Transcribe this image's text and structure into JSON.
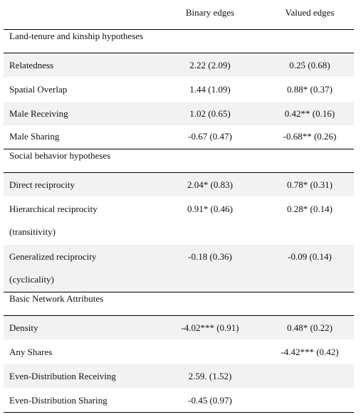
{
  "columns": {
    "binary": "Binary edges",
    "valued": "Valued edges"
  },
  "sections": [
    {
      "title": "Land-tenure and kinship hypotheses",
      "rows": [
        {
          "label": "Relatedness",
          "binary": "2.22 (2.09)",
          "valued": "0.25 (0.68)"
        },
        {
          "label": "Spatial Overlap",
          "binary": "1.44 (1.09)",
          "valued": "0.88* (0.37)"
        },
        {
          "label": "Male Receiving",
          "binary": "1.02 (0.65)",
          "valued": "0.42** (0.16)"
        },
        {
          "label": "Male Sharing",
          "binary": "-0.67 (0.47)",
          "valued": "-0.68** (0.26)"
        }
      ]
    },
    {
      "title": "Social behavior hypotheses",
      "rows": [
        {
          "label": "Direct reciprocity",
          "binary": "2.04* (0.83)",
          "valued": "0.78* (0.31)"
        },
        {
          "label_line1": "Hierarchical reciprocity",
          "label_line2": "(transitivity)",
          "binary": "0.91* (0.46)",
          "valued": "0.28* (0.14)"
        },
        {
          "label_line1": "Generalized reciprocity",
          "label_line2": "(cyclicality)",
          "binary": "-0.18 (0.36)",
          "valued": "-0.09 (0.14)"
        }
      ]
    },
    {
      "title": "Basic Network Attributes",
      "rows": [
        {
          "label": "Density",
          "binary": "-4.02*** (0.91)",
          "valued": "0.48* (0.22)"
        },
        {
          "label": "Any Shares",
          "binary": "",
          "valued": "-4.42*** (0.42)"
        },
        {
          "label": "Even-Distribution Receiving",
          "binary": "2.59. (1.52)",
          "valued": ""
        },
        {
          "label": "Even-Distribution Sharing",
          "binary": "-0.45 (0.97)",
          "valued": ""
        }
      ]
    }
  ]
}
